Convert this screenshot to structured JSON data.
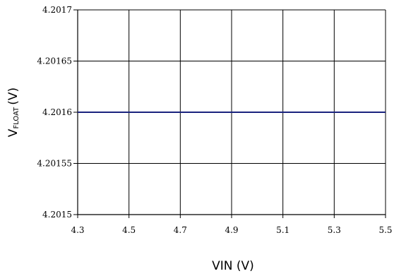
{
  "chart_data": {
    "type": "line",
    "xlabel": "VIN (V)",
    "ylabel_main": "V",
    "ylabel_sub": "FLOAT",
    "ylabel_unit": "(V)",
    "xlim": [
      4.3,
      5.5
    ],
    "ylim": [
      4.2015,
      4.2017
    ],
    "x_ticks": [
      "4.3",
      "4.5",
      "4.7",
      "4.9",
      "5.1",
      "5.3",
      "5.5"
    ],
    "y_ticks": [
      "4.2015",
      "4.20155",
      "4.2016",
      "4.20165",
      "4.2017"
    ],
    "grid": true,
    "series": [
      {
        "color": "#1a237e",
        "x": [
          4.3,
          5.5
        ],
        "y": [
          4.2016,
          4.2016
        ]
      }
    ]
  }
}
